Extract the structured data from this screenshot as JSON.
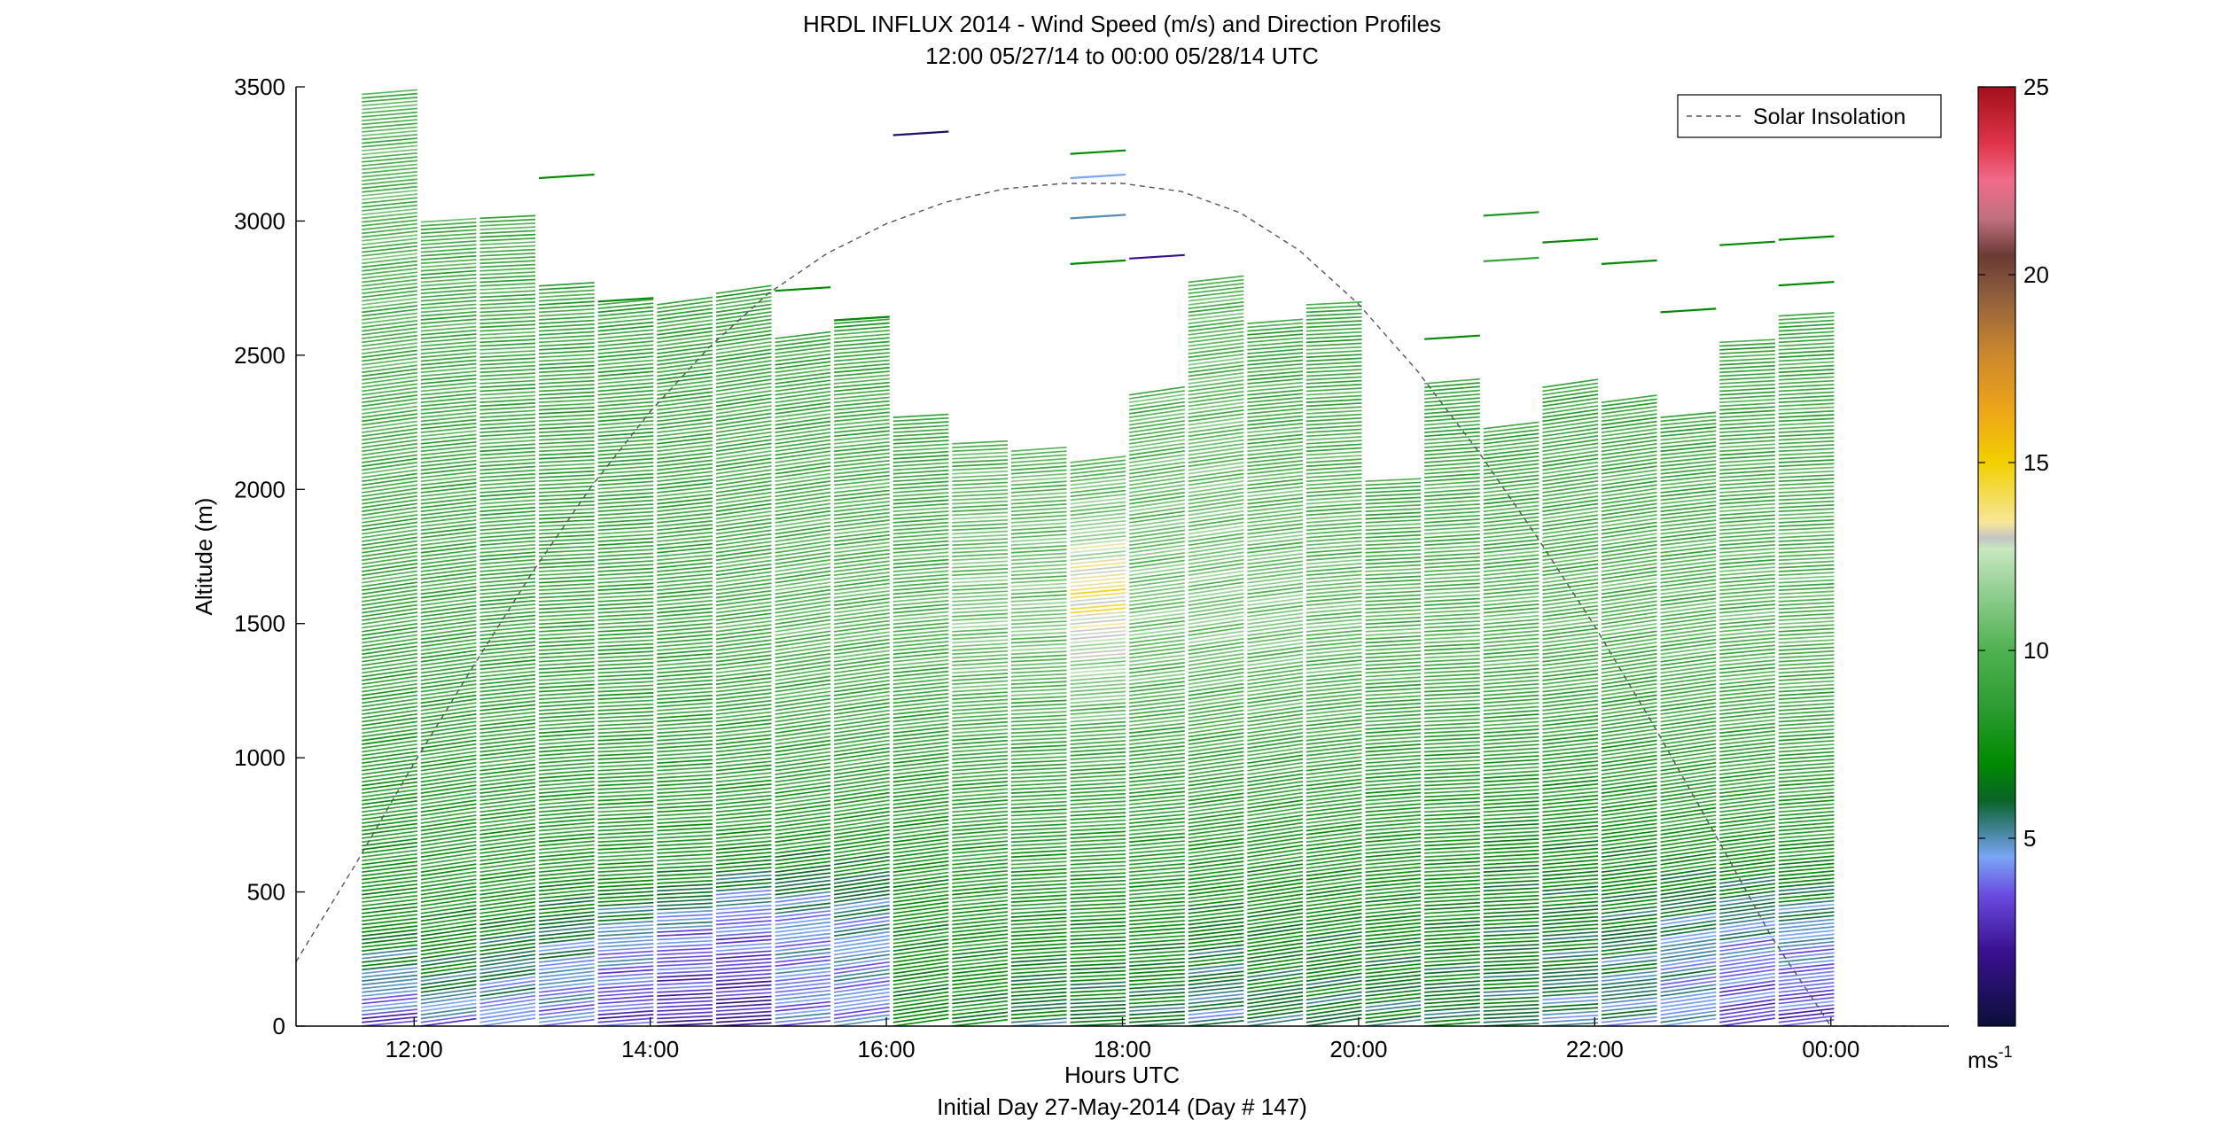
{
  "chart_data": {
    "type": "wind_profile",
    "title": "HRDL INFLUX 2014 - Wind Speed (m/s) and Direction Profiles",
    "subtitle": "12:00 05/27/14 to 00:00 05/28/14  UTC",
    "xlabel": "Hours UTC",
    "xlabel2": "Initial Day 27-May-2014 (Day # 147)",
    "ylabel": "Altitude (m)",
    "xlim": [
      11.0,
      25.0
    ],
    "ylim": [
      0,
      3500
    ],
    "x_ticks": [
      {
        "value": 12,
        "label": "12:00"
      },
      {
        "value": 14,
        "label": "14:00"
      },
      {
        "value": 16,
        "label": "16:00"
      },
      {
        "value": 18,
        "label": "18:00"
      },
      {
        "value": 20,
        "label": "20:00"
      },
      {
        "value": 22,
        "label": "22:00"
      },
      {
        "value": 24,
        "label": "00:00"
      }
    ],
    "y_ticks": [
      {
        "value": 0,
        "label": "0"
      },
      {
        "value": 500,
        "label": "500"
      },
      {
        "value": 1000,
        "label": "1000"
      },
      {
        "value": 1500,
        "label": "1500"
      },
      {
        "value": 2000,
        "label": "2000"
      },
      {
        "value": 2500,
        "label": "2500"
      },
      {
        "value": 3000,
        "label": "3000"
      },
      {
        "value": 3500,
        "label": "3500"
      }
    ],
    "legend": {
      "position": "top-right",
      "entries": [
        "Solar Insolation"
      ]
    },
    "solar_insolation": {
      "style": "dashed",
      "color": "#555555",
      "x": [
        11.0,
        11.5,
        12.0,
        12.5,
        13.0,
        13.5,
        14.0,
        14.5,
        15.0,
        15.5,
        16.0,
        16.5,
        17.0,
        17.5,
        18.0,
        18.5,
        19.0,
        19.5,
        20.0,
        20.5,
        21.0,
        21.5,
        22.0,
        22.5,
        23.0,
        23.5,
        24.0,
        24.5,
        24.7
      ],
      "y": [
        240,
        600,
        980,
        1340,
        1690,
        2010,
        2290,
        2530,
        2730,
        2880,
        2990,
        3070,
        3120,
        3140,
        3140,
        3110,
        3030,
        2890,
        2690,
        2440,
        2150,
        1830,
        1490,
        1120,
        730,
        330,
        0,
        0,
        0
      ]
    },
    "colorbar": {
      "range": [
        0,
        25
      ],
      "ticks": [
        5,
        10,
        15,
        20,
        25
      ],
      "unit": "ms",
      "unit_exp": "-1",
      "stops": [
        {
          "v": 0,
          "c": "#0a0f3a"
        },
        {
          "v": 2,
          "c": "#3a1090"
        },
        {
          "v": 3.5,
          "c": "#6a4ce0"
        },
        {
          "v": 4.5,
          "c": "#7aa6f6"
        },
        {
          "v": 5.3,
          "c": "#3c7f8c"
        },
        {
          "v": 6,
          "c": "#0a6428"
        },
        {
          "v": 7,
          "c": "#008a00"
        },
        {
          "v": 8.5,
          "c": "#2d9d33"
        },
        {
          "v": 10,
          "c": "#4fb14f"
        },
        {
          "v": 11.5,
          "c": "#8fcd8f"
        },
        {
          "v": 12.7,
          "c": "#c8e8c0"
        },
        {
          "v": 13.0,
          "c": "#c4c4c4"
        },
        {
          "v": 13.4,
          "c": "#f6e79a"
        },
        {
          "v": 15,
          "c": "#f2cf00"
        },
        {
          "v": 16.5,
          "c": "#eca21a"
        },
        {
          "v": 18,
          "c": "#c8852e"
        },
        {
          "v": 19.5,
          "c": "#8d5c3e"
        },
        {
          "v": 20.5,
          "c": "#6a3a34"
        },
        {
          "v": 21.5,
          "c": "#c07080"
        },
        {
          "v": 22.5,
          "c": "#f06b8a"
        },
        {
          "v": 23.5,
          "c": "#e0344a"
        },
        {
          "v": 25,
          "c": "#a20f1a"
        }
      ]
    },
    "profiles": [
      {
        "t": 11.55,
        "top": 3480,
        "spd": [
          [
            0,
            3
          ],
          [
            150,
            5
          ],
          [
            400,
            7.5
          ],
          [
            1500,
            9
          ],
          [
            3000,
            10
          ]
        ]
      },
      {
        "t": 12.05,
        "top": 3000,
        "spd": [
          [
            0,
            4
          ],
          [
            150,
            6
          ],
          [
            500,
            8
          ],
          [
            1500,
            9
          ],
          [
            3000,
            9.5
          ]
        ]
      },
      {
        "t": 12.55,
        "top": 3020,
        "spd": [
          [
            0,
            4
          ],
          [
            200,
            5.5
          ],
          [
            500,
            8
          ],
          [
            1500,
            9
          ],
          [
            3000,
            9.5
          ]
        ]
      },
      {
        "t": 13.05,
        "top": 2760,
        "spd": [
          [
            0,
            4
          ],
          [
            250,
            5
          ],
          [
            600,
            8
          ],
          [
            1500,
            9
          ],
          [
            2700,
            9
          ]
        ]
      },
      {
        "t": 13.55,
        "top": 2700,
        "spd": [
          [
            0,
            3
          ],
          [
            300,
            4.5
          ],
          [
            600,
            8
          ],
          [
            1500,
            9
          ],
          [
            2700,
            9
          ]
        ]
      },
      {
        "t": 14.05,
        "top": 2690,
        "spd": [
          [
            0,
            2.5
          ],
          [
            350,
            4
          ],
          [
            600,
            8
          ],
          [
            1500,
            9
          ],
          [
            2700,
            9
          ]
        ]
      },
      {
        "t": 14.55,
        "top": 2740,
        "spd": [
          [
            0,
            2
          ],
          [
            400,
            4
          ],
          [
            700,
            8
          ],
          [
            1500,
            9.5
          ],
          [
            2700,
            9
          ]
        ]
      },
      {
        "t": 15.05,
        "top": 2570,
        "spd": [
          [
            0,
            4
          ],
          [
            400,
            4.5
          ],
          [
            700,
            8
          ],
          [
            1500,
            10
          ],
          [
            2500,
            9
          ]
        ]
      },
      {
        "t": 15.55,
        "top": 2630,
        "spd": [
          [
            0,
            4
          ],
          [
            400,
            5
          ],
          [
            700,
            8
          ],
          [
            1500,
            10
          ],
          [
            2600,
            9
          ]
        ]
      },
      {
        "t": 16.05,
        "top": 2280,
        "spd": [
          [
            0,
            7
          ],
          [
            500,
            7.5
          ],
          [
            1000,
            8.5
          ],
          [
            1500,
            10
          ],
          [
            2200,
            9
          ]
        ]
      },
      {
        "t": 16.55,
        "top": 2170,
        "spd": [
          [
            0,
            7
          ],
          [
            500,
            8
          ],
          [
            1000,
            9
          ],
          [
            1500,
            11
          ],
          [
            2100,
            10
          ]
        ]
      },
      {
        "t": 17.05,
        "top": 2150,
        "spd": [
          [
            0,
            6
          ],
          [
            500,
            8
          ],
          [
            1000,
            9
          ],
          [
            1500,
            11
          ],
          [
            2100,
            10
          ]
        ]
      },
      {
        "t": 17.55,
        "top": 2100,
        "spd": [
          [
            0,
            6
          ],
          [
            500,
            8
          ],
          [
            1000,
            9
          ],
          [
            1600,
            14
          ],
          [
            1900,
            11
          ],
          [
            2100,
            10
          ]
        ]
      },
      {
        "t": 18.05,
        "top": 2360,
        "spd": [
          [
            0,
            6
          ],
          [
            500,
            8
          ],
          [
            1000,
            9
          ],
          [
            1500,
            11
          ],
          [
            2200,
            10
          ]
        ]
      },
      {
        "t": 18.55,
        "top": 2780,
        "spd": [
          [
            0,
            5
          ],
          [
            500,
            7.5
          ],
          [
            1000,
            9
          ],
          [
            1500,
            11
          ],
          [
            2600,
            10
          ]
        ]
      },
      {
        "t": 19.05,
        "top": 2620,
        "spd": [
          [
            0,
            6
          ],
          [
            500,
            7.5
          ],
          [
            1000,
            9
          ],
          [
            1500,
            11
          ],
          [
            2500,
            9
          ]
        ]
      },
      {
        "t": 19.55,
        "top": 2700,
        "spd": [
          [
            0,
            6
          ],
          [
            500,
            7.5
          ],
          [
            1000,
            9
          ],
          [
            1500,
            10.5
          ],
          [
            2600,
            9
          ]
        ]
      },
      {
        "t": 20.05,
        "top": 2040,
        "spd": [
          [
            0,
            6
          ],
          [
            500,
            7.5
          ],
          [
            1000,
            8.5
          ],
          [
            1500,
            10
          ],
          [
            2000,
            9
          ]
        ]
      },
      {
        "t": 20.55,
        "top": 2400,
        "spd": [
          [
            0,
            6
          ],
          [
            500,
            7.5
          ],
          [
            1000,
            8.5
          ],
          [
            1500,
            10
          ],
          [
            2300,
            9
          ]
        ]
      },
      {
        "t": 21.05,
        "top": 2230,
        "spd": [
          [
            0,
            6
          ],
          [
            600,
            7
          ],
          [
            1000,
            8.5
          ],
          [
            1500,
            10
          ],
          [
            2200,
            9
          ]
        ]
      },
      {
        "t": 21.55,
        "top": 2380,
        "spd": [
          [
            0,
            5
          ],
          [
            200,
            6
          ],
          [
            600,
            7
          ],
          [
            1500,
            10
          ],
          [
            2300,
            9
          ]
        ]
      },
      {
        "t": 22.05,
        "top": 2330,
        "spd": [
          [
            0,
            5
          ],
          [
            300,
            6
          ],
          [
            700,
            7.5
          ],
          [
            1500,
            10
          ],
          [
            2300,
            9
          ]
        ]
      },
      {
        "t": 22.55,
        "top": 2270,
        "spd": [
          [
            0,
            4.5
          ],
          [
            300,
            5
          ],
          [
            700,
            8
          ],
          [
            1500,
            10
          ],
          [
            2200,
            9
          ]
        ]
      },
      {
        "t": 23.05,
        "top": 2560,
        "spd": [
          [
            0,
            3
          ],
          [
            300,
            4.5
          ],
          [
            700,
            8
          ],
          [
            1500,
            10
          ],
          [
            2500,
            9
          ]
        ]
      },
      {
        "t": 23.55,
        "top": 2650,
        "spd": [
          [
            0,
            3
          ],
          [
            300,
            4.5
          ],
          [
            700,
            8
          ],
          [
            1500,
            10
          ],
          [
            2600,
            9
          ]
        ]
      }
    ],
    "isolated": [
      {
        "t": 13.05,
        "z": 3160,
        "spd": 7
      },
      {
        "t": 13.55,
        "z": 2700,
        "spd": 7
      },
      {
        "t": 15.05,
        "z": 2740,
        "spd": 7
      },
      {
        "t": 15.55,
        "z": 2630,
        "spd": 7
      },
      {
        "t": 16.05,
        "z": 3320,
        "spd": 1
      },
      {
        "t": 17.55,
        "z": 3250,
        "spd": 7
      },
      {
        "t": 17.55,
        "z": 3160,
        "spd": 4.5
      },
      {
        "t": 17.55,
        "z": 3010,
        "spd": 5
      },
      {
        "t": 17.55,
        "z": 2840,
        "spd": 7
      },
      {
        "t": 18.05,
        "z": 2860,
        "spd": 2
      },
      {
        "t": 20.55,
        "z": 2560,
        "spd": 7
      },
      {
        "t": 21.05,
        "z": 3020,
        "spd": 8
      },
      {
        "t": 21.05,
        "z": 2850,
        "spd": 9
      },
      {
        "t": 21.55,
        "z": 2920,
        "spd": 7
      },
      {
        "t": 22.05,
        "z": 2840,
        "spd": 7
      },
      {
        "t": 22.55,
        "z": 2660,
        "spd": 7
      },
      {
        "t": 23.05,
        "z": 2910,
        "spd": 7
      },
      {
        "t": 23.55,
        "z": 2930,
        "spd": 7
      },
      {
        "t": 23.55,
        "z": 2760,
        "spd": 7
      }
    ]
  }
}
